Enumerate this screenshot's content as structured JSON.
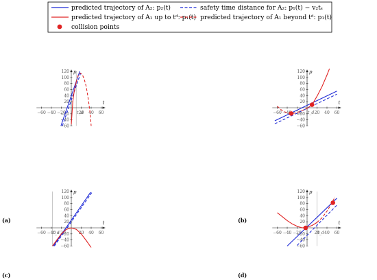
{
  "colors": {
    "blue": "#1f2bd6",
    "red": "#e02424",
    "axis": "#222222",
    "marker": "#bbbbbb"
  },
  "legend": {
    "items": [
      {
        "label": "predicted trajectory of A₂: p₂(t)",
        "style": "blue-solid"
      },
      {
        "label": "safety time distance for A₂: p₁(t) − v₂tₛ",
        "style": "blue-dashed"
      },
      {
        "label": "predicted trajectory of A₁ up to tᵈ: p₁(t)",
        "style": "red-solid"
      },
      {
        "label": "predicted trajectory of A₁ beyond tᵈ: p₁(t)",
        "style": "red-dashed"
      },
      {
        "label": "collision points",
        "style": "red-dot"
      }
    ]
  },
  "chart_data": [
    {
      "panel": "(a)",
      "type": "line",
      "xlabel": "t",
      "ylabel": "p",
      "xlim": [
        -70,
        60
      ],
      "ylim": [
        -60,
        120
      ],
      "xticks": [
        -60,
        -40,
        -20,
        20,
        40,
        60
      ],
      "yticks": [
        -60,
        -40,
        -20,
        20,
        40,
        60,
        80,
        100,
        120
      ],
      "marker_label": "t_d",
      "marker_x": 10,
      "series": [
        {
          "style": "blue-solid",
          "x": [
            -21,
            17
          ],
          "y": [
            -60,
            120
          ]
        },
        {
          "style": "blue-dashed",
          "x": [
            -18,
            20
          ],
          "y": [
            -60,
            120
          ]
        },
        {
          "style": "red-solid",
          "x": [
            0,
            3,
            6,
            10
          ],
          "y": [
            -55,
            20,
            55,
            85
          ]
        },
        {
          "style": "red-dashed",
          "x": [
            10,
            14,
            18,
            22,
            26,
            30,
            34,
            38,
            40
          ],
          "y": [
            85,
            108,
            114,
            110,
            95,
            70,
            30,
            -20,
            -60
          ]
        }
      ],
      "points": []
    },
    {
      "panel": "(b)",
      "type": "line",
      "xlabel": "t",
      "ylabel": "p",
      "xlim": [
        -70,
        60
      ],
      "ylim": [
        -60,
        120
      ],
      "xticks": [
        -60,
        -40,
        -20,
        20,
        40,
        60
      ],
      "yticks": [
        -60,
        -40,
        -20,
        20,
        40,
        60,
        80,
        100,
        120
      ],
      "marker_label": "t_d",
      "marker_x": 0,
      "series": [
        {
          "style": "blue-solid",
          "x": [
            -65,
            60
          ],
          "y": [
            -43,
            55
          ]
        },
        {
          "style": "blue-dashed",
          "x": [
            -65,
            60
          ],
          "y": [
            -53,
            45
          ]
        },
        {
          "style": "red-solid",
          "x": [
            0,
            10,
            20,
            30,
            40,
            50
          ],
          "y": [
            -2,
            10,
            38,
            70,
            108,
            150
          ]
        },
        {
          "style": "red-dashed",
          "x": [
            -60,
            -50,
            -40,
            -30,
            -20,
            -10,
            0
          ],
          "y": [
            5,
            -10,
            -17,
            -19,
            -16,
            -9,
            -2
          ]
        }
      ],
      "points": [
        {
          "x": -32,
          "y": -19
        },
        {
          "x": 10,
          "y": 10
        }
      ]
    },
    {
      "panel": "(c)",
      "type": "line",
      "xlabel": "t",
      "ylabel": "p",
      "xlim": [
        -70,
        60
      ],
      "ylim": [
        -60,
        120
      ],
      "xticks": [
        -60,
        -40,
        -20,
        20,
        40,
        60
      ],
      "yticks": [
        -60,
        -40,
        -20,
        20,
        40,
        60,
        80,
        100,
        120
      ],
      "marker_label": "t_d",
      "marker_x": -38,
      "series": [
        {
          "style": "blue-solid",
          "x": [
            -36,
            39
          ],
          "y": [
            -60,
            118
          ]
        },
        {
          "style": "blue-dashed",
          "x": [
            -34,
            42
          ],
          "y": [
            -60,
            118
          ]
        },
        {
          "style": "red-solid",
          "x": [
            -38,
            -30,
            -20,
            -10,
            0,
            10,
            20,
            30,
            40
          ],
          "y": [
            -60,
            -42,
            -20,
            -5,
            0,
            -5,
            -20,
            -42,
            -65
          ]
        }
      ],
      "points": []
    },
    {
      "panel": "(d)",
      "type": "line",
      "xlabel": "t",
      "ylabel": "p",
      "xlim": [
        -70,
        60
      ],
      "ylim": [
        -60,
        120
      ],
      "xticks": [
        -60,
        -40,
        -20,
        20,
        40,
        60
      ],
      "yticks": [
        -60,
        -40,
        -20,
        20,
        40,
        60,
        80,
        100,
        120
      ],
      "marker_label": "t_d",
      "marker_x": 20,
      "series": [
        {
          "style": "blue-solid",
          "x": [
            -40,
            60
          ],
          "y": [
            -60,
            98
          ]
        },
        {
          "style": "blue-dashed",
          "x": [
            -20,
            60
          ],
          "y": [
            -58,
            75
          ]
        },
        {
          "style": "red-solid",
          "x": [
            -60,
            -50,
            -40,
            -30,
            -20,
            -10,
            0,
            10,
            20
          ],
          "y": [
            50,
            37,
            24,
            13,
            5,
            0,
            2,
            8,
            18
          ]
        },
        {
          "style": "red-dashed",
          "x": [
            20,
            30,
            40,
            50,
            56
          ],
          "y": [
            18,
            33,
            55,
            82,
            102
          ]
        }
      ],
      "points": [
        {
          "x": -3,
          "y": 0
        },
        {
          "x": 52,
          "y": 83
        }
      ]
    }
  ]
}
